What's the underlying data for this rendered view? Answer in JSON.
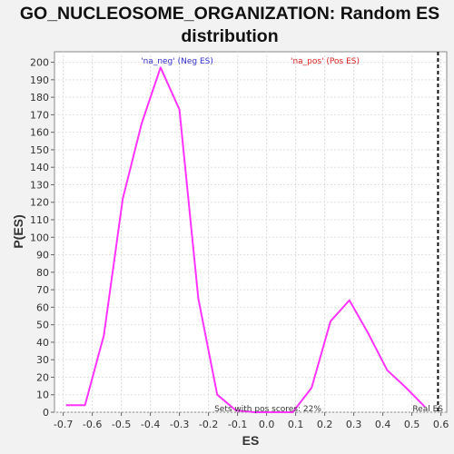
{
  "chart_data": {
    "type": "line",
    "title": "GO_NUCLEOSOME_ORGANIZATION: Random ES distribution",
    "xlabel": "ES",
    "ylabel": "P(ES)",
    "xlim": [
      -0.73,
      0.62
    ],
    "ylim": [
      0,
      206
    ],
    "xticks": [
      -0.7,
      -0.6,
      -0.5,
      -0.4,
      -0.3,
      -0.2,
      -0.1,
      0.0,
      0.1,
      0.2,
      0.3,
      0.4,
      0.5,
      0.6
    ],
    "xtick_labels": [
      "-0.7",
      "-0.6",
      "-0.5",
      "-0.4",
      "-0.3",
      "-0.2",
      "-0.1",
      "0.0",
      "0.1",
      "0.2",
      "0.3",
      "0.4",
      "0.5",
      "0.6"
    ],
    "yticks": [
      0,
      10,
      20,
      30,
      40,
      50,
      60,
      70,
      80,
      90,
      100,
      110,
      120,
      130,
      140,
      150,
      160,
      170,
      180,
      190,
      200
    ],
    "ytick_labels": [
      "0",
      "10",
      "20",
      "30",
      "40",
      "50",
      "60",
      "70",
      "80",
      "90",
      "100",
      "110",
      "120",
      "130",
      "140",
      "150",
      "160",
      "170",
      "180",
      "190",
      "200"
    ],
    "grid": true,
    "series": [
      {
        "color": "#ff33ff",
        "x": [
          -0.69,
          -0.625,
          -0.56,
          -0.495,
          -0.43,
          -0.365,
          -0.3,
          -0.235,
          -0.17,
          -0.105,
          -0.04,
          0.025,
          0.09,
          0.155,
          0.22,
          0.285,
          0.35,
          0.415,
          0.48,
          0.545
        ],
        "y": [
          4,
          4,
          44,
          122,
          165,
          197,
          173,
          65,
          10,
          1,
          0,
          0,
          0,
          14,
          52,
          64,
          45,
          24,
          14,
          3
        ]
      }
    ],
    "real_es": 0.59,
    "annotations": {
      "neg_label": "'na_neg' (Neg ES)",
      "neg_color": "#3333cc",
      "pos_label": "'na_pos' (Pos ES)",
      "pos_color": "#dd2222",
      "sets_pos": "Sets with pos scores: 22%",
      "real_es_label": "Real ES"
    }
  }
}
